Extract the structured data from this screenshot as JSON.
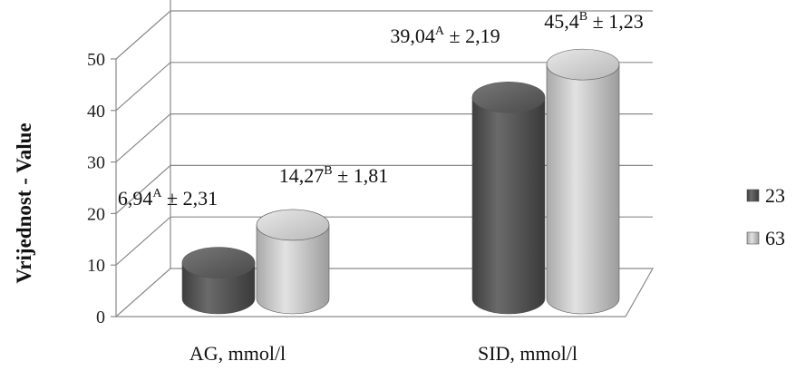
{
  "chart_data": {
    "type": "bar",
    "style": "3d-cylinder",
    "ylabel": "Vrijednost - Value",
    "xlabel": "",
    "ylim": [
      0,
      50
    ],
    "yticks": [
      0,
      10,
      20,
      30,
      40,
      50
    ],
    "grid": true,
    "legend_position": "right",
    "categories": [
      "AG, mmol/l",
      "SID, mmol/l"
    ],
    "series": [
      {
        "name": "23",
        "color": "#5a5a5a",
        "values": [
          6.94,
          39.04
        ],
        "labels": [
          {
            "value": "6,94",
            "sup": "A",
            "sd": "± 2,31"
          },
          {
            "value": "39,04",
            "sup": "A",
            "sd": "± 2,19"
          }
        ]
      },
      {
        "name": "63",
        "color": "#c4c4c4",
        "values": [
          14.27,
          45.4
        ],
        "labels": [
          {
            "value": "14,27",
            "sup": "B",
            "sd": "± 1,81"
          },
          {
            "value": "45,4",
            "sup": "B",
            "sd": "± 1,23"
          }
        ]
      }
    ]
  }
}
